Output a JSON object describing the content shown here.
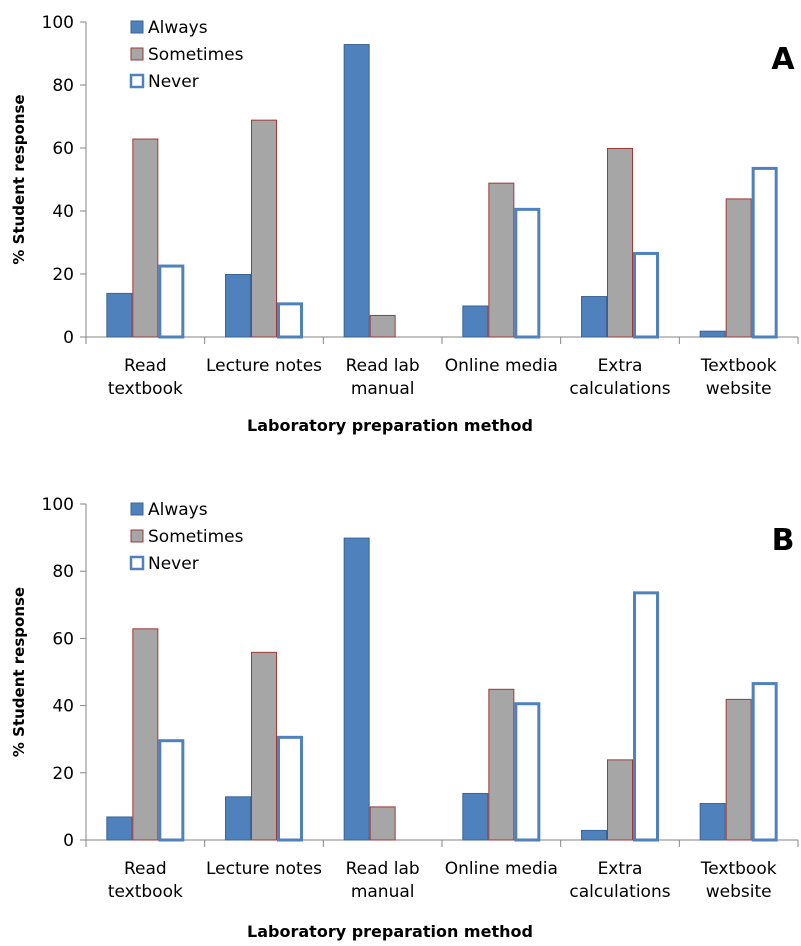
{
  "colors": {
    "always_fill": "#4F81BD",
    "always_stroke": "#3A6496",
    "sometimes_fill": "#A6A6A6",
    "sometimes_stroke": "#9E3A38",
    "never_fill": "#FFFFFF",
    "never_stroke": "#4F81BD",
    "axis": "#868686"
  },
  "chart_data": [
    {
      "type": "bar",
      "panel_label": "A",
      "categories": [
        [
          "Read",
          "textbook"
        ],
        [
          "Lecture notes"
        ],
        [
          "Read lab",
          "manual"
        ],
        [
          "Online media"
        ],
        [
          "Extra",
          "calculations"
        ],
        [
          "Textbook",
          "website"
        ]
      ],
      "series": [
        {
          "name": "Always",
          "values": [
            14,
            20,
            93,
            10,
            13,
            2
          ]
        },
        {
          "name": "Sometimes",
          "values": [
            63,
            69,
            7,
            49,
            60,
            44
          ]
        },
        {
          "name": "Never",
          "values": [
            23,
            11,
            0,
            41,
            27,
            54
          ]
        }
      ],
      "xlabel": "Laboratory preparation method",
      "ylabel": "% Student response",
      "ylim": [
        0,
        100
      ],
      "yticks": [
        "0",
        "20",
        "40",
        "60",
        "80",
        "100"
      ],
      "grid": false,
      "legend_position": "top-left"
    },
    {
      "type": "bar",
      "panel_label": "B",
      "categories": [
        [
          "Read",
          "textbook"
        ],
        [
          "Lecture notes"
        ],
        [
          "Read lab",
          "manual"
        ],
        [
          "Online media"
        ],
        [
          "Extra",
          "calculations"
        ],
        [
          "Textbook",
          "website"
        ]
      ],
      "series": [
        {
          "name": "Always",
          "values": [
            7,
            13,
            90,
            14,
            3,
            11
          ]
        },
        {
          "name": "Sometimes",
          "values": [
            63,
            56,
            10,
            45,
            24,
            42
          ]
        },
        {
          "name": "Never",
          "values": [
            30,
            31,
            0,
            41,
            74,
            47
          ]
        }
      ],
      "xlabel": "Laboratory preparation method",
      "ylabel": "% Student response",
      "ylim": [
        0,
        100
      ],
      "yticks": [
        "0",
        "20",
        "40",
        "60",
        "80",
        "100"
      ],
      "grid": false,
      "legend_position": "top-left"
    }
  ]
}
